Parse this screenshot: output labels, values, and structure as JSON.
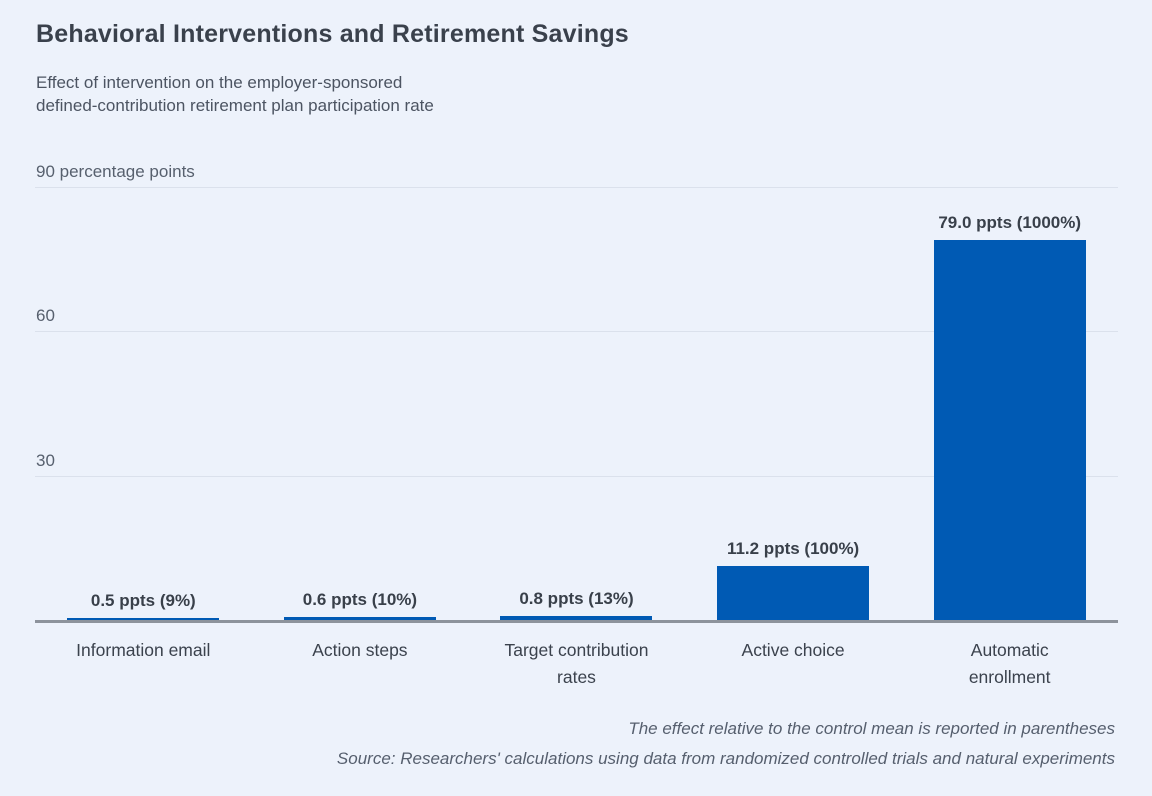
{
  "header": {
    "title": "Behavioral Interventions and Retirement Savings",
    "subtitle": "Effect of intervention on the employer-sponsored\ndefined-contribution retirement plan participation rate"
  },
  "chart_data": {
    "type": "bar",
    "title": "Behavioral Interventions and Retirement Savings",
    "subtitle": "Effect of intervention on the employer-sponsored defined-contribution retirement plan participation rate",
    "unit": "percentage points",
    "ylim": [
      0,
      90
    ],
    "grid": true,
    "bar_color": "#005ab4",
    "yticks": [
      {
        "value": 90,
        "label": "90 percentage points"
      },
      {
        "value": 60,
        "label": "60"
      },
      {
        "value": 30,
        "label": "30"
      }
    ],
    "categories": [
      "Information email",
      "Action steps",
      "Target contribution rates",
      "Active choice",
      "Automatic enrollment"
    ],
    "category_display": [
      "Information email",
      "Action steps",
      "Target contribution\nrates",
      "Active choice",
      "Automatic\nenrollment"
    ],
    "values": [
      0.5,
      0.6,
      0.8,
      11.2,
      79.0
    ],
    "value_labels": [
      "0.5 ppts (9%)",
      "0.6 ppts (10%)",
      "0.8 ppts (13%)",
      "11.2 ppts (100%)",
      "79.0 ppts (1000%)"
    ]
  },
  "footer": {
    "note": "The effect relative to the control mean is reported in parentheses",
    "source": "Source: Researchers' calculations using data from randomized controlled trials and natural experiments"
  },
  "colors": {
    "background": "#edf2fb",
    "bar": "#005ab4",
    "gridline": "#dbe1ec",
    "axis_line": "#8d939c",
    "title_text": "#3a414c",
    "body_text": "#4c5462"
  }
}
